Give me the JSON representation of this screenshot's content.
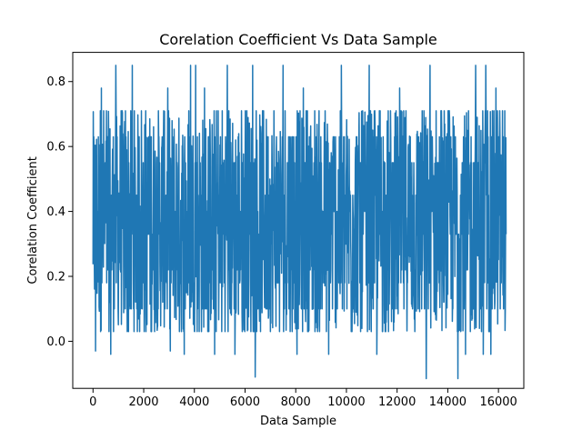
{
  "chart_data": {
    "type": "line",
    "title": "Corelation Coefficient Vs Data Sample",
    "xlabel": "Data Sample",
    "ylabel": "Corelation Coefficient",
    "xlim": [
      -800,
      17000
    ],
    "ylim": [
      -0.145,
      0.89
    ],
    "x_ticks": [
      0,
      2000,
      4000,
      6000,
      8000,
      10000,
      12000,
      14000,
      16000
    ],
    "x_tick_labels": [
      "0",
      "2000",
      "4000",
      "6000",
      "8000",
      "10000",
      "12000",
      "14000",
      "16000"
    ],
    "y_ticks": [
      0.0,
      0.2,
      0.4,
      0.6,
      0.8
    ],
    "y_tick_labels": [
      "0.0",
      "0.2",
      "0.4",
      "0.6",
      "0.8"
    ],
    "grid": false,
    "series": [
      {
        "color": "#1f77b4",
        "n_points": 16300,
        "x_start": 0,
        "x_end": 16300,
        "dense_band": [
          0.03,
          0.71
        ],
        "levels": [
          -0.11,
          -0.04,
          -0.03,
          0.03,
          0.1,
          0.18,
          0.22,
          0.33,
          0.4,
          0.45,
          0.55,
          0.63,
          0.71,
          0.78,
          0.85
        ],
        "spikes_high": [
          {
            "x": 330,
            "y": 0.78
          },
          {
            "x": 900,
            "y": 0.85
          },
          {
            "x": 1550,
            "y": 0.85
          },
          {
            "x": 2950,
            "y": 0.78
          },
          {
            "x": 3850,
            "y": 0.85
          },
          {
            "x": 4050,
            "y": 0.85
          },
          {
            "x": 4400,
            "y": 0.78
          },
          {
            "x": 5300,
            "y": 0.85
          },
          {
            "x": 6300,
            "y": 0.85
          },
          {
            "x": 7500,
            "y": 0.85
          },
          {
            "x": 8300,
            "y": 0.78
          },
          {
            "x": 9800,
            "y": 0.85
          },
          {
            "x": 10900,
            "y": 0.85
          },
          {
            "x": 12100,
            "y": 0.78
          },
          {
            "x": 13300,
            "y": 0.85
          },
          {
            "x": 15100,
            "y": 0.85
          },
          {
            "x": 15500,
            "y": 0.85
          },
          {
            "x": 15900,
            "y": 0.78
          }
        ],
        "spikes_low": [
          {
            "x": 100,
            "y": -0.03
          },
          {
            "x": 700,
            "y": -0.04
          },
          {
            "x": 3050,
            "y": -0.03
          },
          {
            "x": 3600,
            "y": -0.04
          },
          {
            "x": 4800,
            "y": -0.04
          },
          {
            "x": 5600,
            "y": -0.04
          },
          {
            "x": 6400,
            "y": -0.11
          },
          {
            "x": 8050,
            "y": -0.04
          },
          {
            "x": 9300,
            "y": -0.04
          },
          {
            "x": 11200,
            "y": -0.04
          },
          {
            "x": 13150,
            "y": -0.115
          },
          {
            "x": 14400,
            "y": -0.115
          },
          {
            "x": 14700,
            "y": -0.04
          },
          {
            "x": 15400,
            "y": -0.04
          },
          {
            "x": 15700,
            "y": -0.04
          }
        ]
      }
    ]
  }
}
